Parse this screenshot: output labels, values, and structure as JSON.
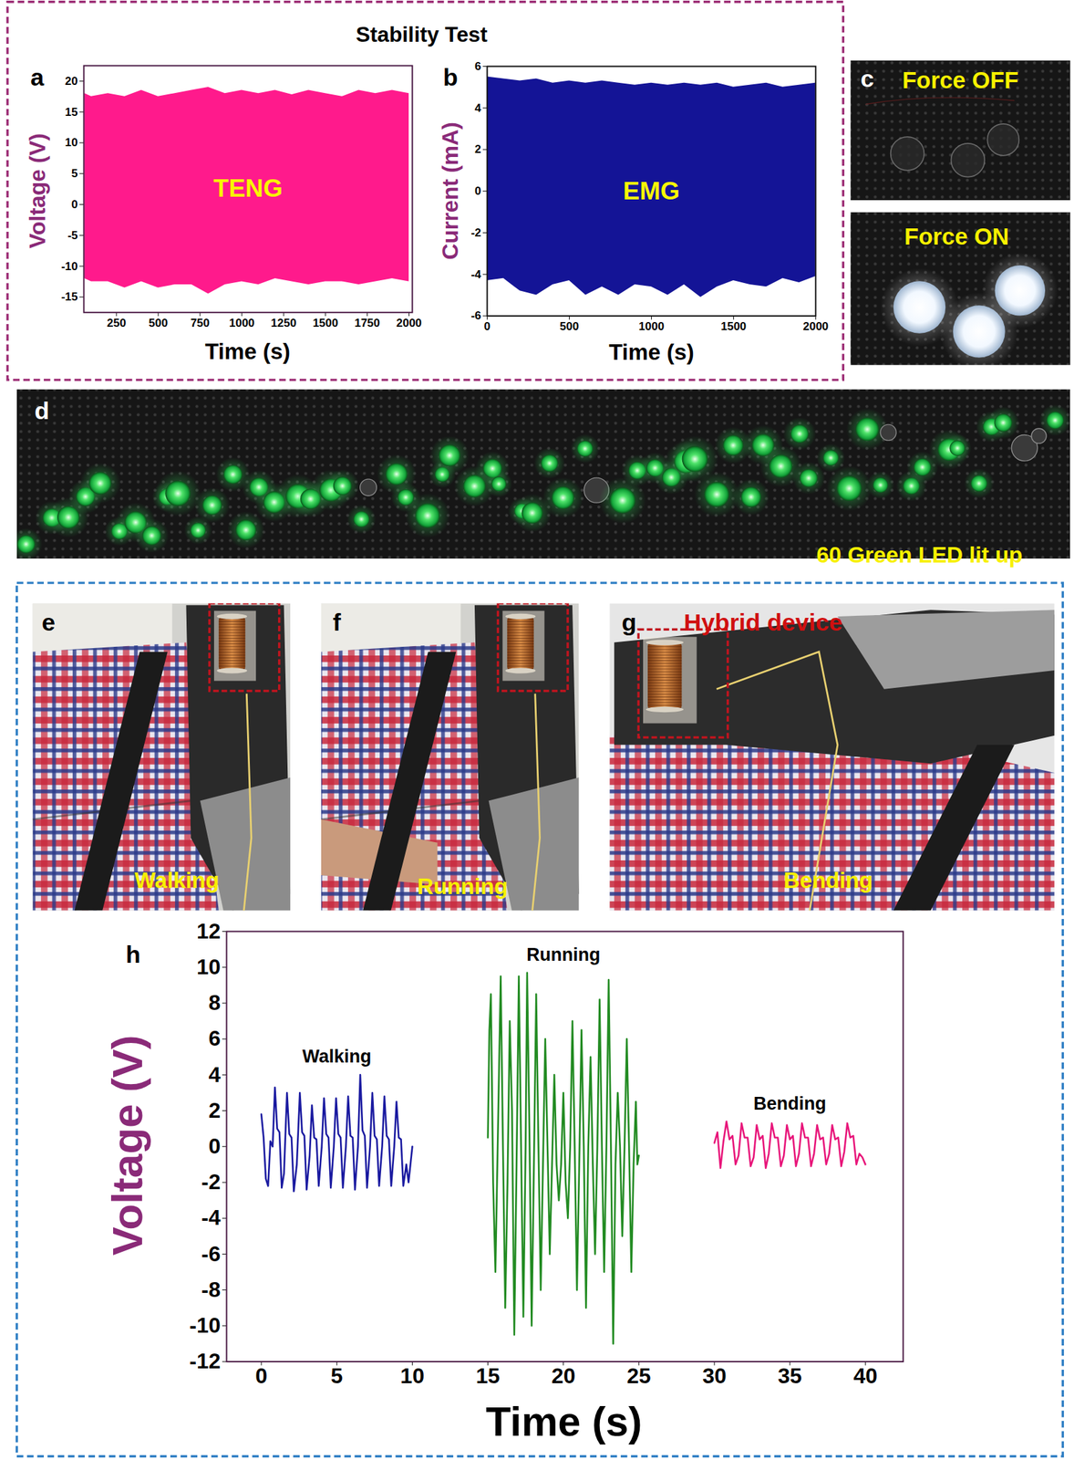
{
  "title": "Stability Test",
  "chart_data": [
    {
      "panel_label": "a",
      "type": "area",
      "x_label": "Time (s)",
      "y_label": "Voltage (V)",
      "annotation": "TENG",
      "color": "#ff1a8c",
      "x": [
        60,
        100,
        200,
        300,
        400,
        500,
        600,
        700,
        800,
        900,
        1000,
        1100,
        1200,
        1300,
        1400,
        1500,
        1600,
        1700,
        1800,
        1900,
        2000
      ],
      "y_max": [
        18,
        17.5,
        18,
        17.5,
        18.5,
        17.5,
        18,
        18.5,
        19,
        18,
        18.5,
        18,
        18.5,
        17.8,
        18.5,
        18,
        17.5,
        18.5,
        18,
        18.5,
        18
      ],
      "y_min": [
        -12,
        -12.5,
        -12.5,
        -13.5,
        -12.5,
        -13.5,
        -13,
        -13,
        -14.5,
        -13,
        -12.5,
        -13,
        -12,
        -12.5,
        -13,
        -12.5,
        -12.5,
        -13,
        -12.5,
        -12,
        -12.5
      ],
      "xlim": [
        55,
        2020
      ],
      "ylim": [
        -17.5,
        22.5
      ],
      "xticks": [
        250,
        500,
        750,
        1000,
        1250,
        1500,
        1750,
        2000
      ],
      "yticks": [
        -15,
        -10,
        -5,
        0,
        5,
        10,
        15,
        20
      ]
    },
    {
      "panel_label": "b",
      "type": "area",
      "x_label": "Time (s)",
      "y_label": "Current (mA)",
      "annotation": "EMG",
      "color": "#141496",
      "x": [
        0,
        100,
        200,
        300,
        400,
        500,
        600,
        700,
        800,
        900,
        1000,
        1100,
        1200,
        1300,
        1400,
        1500,
        1600,
        1700,
        1800,
        1900,
        2000
      ],
      "y_max": [
        5.5,
        5.4,
        5.3,
        5.4,
        5.2,
        5.3,
        5.2,
        5.3,
        5.2,
        5.1,
        5.2,
        5.1,
        5.2,
        5.1,
        5.2,
        5.0,
        5.1,
        5.2,
        5.0,
        5.1,
        5.2
      ],
      "y_min": [
        -4.3,
        -4.2,
        -4.8,
        -5.0,
        -4.5,
        -4.3,
        -5.0,
        -4.6,
        -5.0,
        -4.5,
        -4.6,
        -5.0,
        -4.5,
        -5.1,
        -4.6,
        -4.3,
        -4.5,
        -4.6,
        -4.2,
        -4.4,
        -4.1
      ],
      "xlim": [
        0,
        2000
      ],
      "ylim": [
        -6,
        6
      ],
      "xticks": [
        0,
        500,
        1000,
        1500,
        2000
      ],
      "yticks": [
        -6,
        -4,
        -2,
        0,
        2,
        4,
        6
      ]
    },
    {
      "panel_label": "h",
      "type": "line",
      "x_label": "Time (s)",
      "y_label": "Voltage (V)",
      "xlim": [
        -2.3,
        42.5
      ],
      "ylim": [
        -12,
        12
      ],
      "xticks": [
        0,
        5,
        10,
        15,
        20,
        25,
        30,
        35,
        40
      ],
      "yticks": [
        -12,
        -10,
        -8,
        -6,
        -4,
        -2,
        0,
        2,
        4,
        6,
        8,
        10,
        12
      ],
      "series": [
        {
          "name": "Walking",
          "color": "#1a1aa0",
          "x": [
            0,
            0.15,
            0.3,
            0.45,
            0.6,
            0.75,
            0.9,
            1.05,
            1.2,
            1.35,
            1.5,
            1.7,
            1.85,
            2.0,
            2.15,
            2.35,
            2.55,
            2.7,
            2.85,
            3.0,
            3.2,
            3.35,
            3.5,
            3.65,
            3.8,
            4.0,
            4.15,
            4.3,
            4.45,
            4.6,
            4.8,
            4.95,
            5.1,
            5.25,
            5.4,
            5.6,
            5.75,
            5.9,
            6.05,
            6.2,
            6.4,
            6.55,
            6.7,
            6.85,
            7.0,
            7.2,
            7.35,
            7.5,
            7.65,
            7.8,
            8.0,
            8.15,
            8.3,
            8.45,
            8.6,
            8.8,
            8.95,
            9.1,
            9.25,
            9.4,
            9.6,
            9.75,
            10.0
          ],
          "values": [
            1.8,
            0.5,
            -1.8,
            -2.2,
            0.3,
            0.0,
            3.3,
            1.0,
            0.8,
            -2.3,
            -1.5,
            3.0,
            0.7,
            0.5,
            -2.5,
            -1.0,
            3.0,
            0.8,
            0.6,
            -2.4,
            -0.5,
            2.3,
            0.5,
            0.4,
            -2.2,
            0,
            2.7,
            0.7,
            0.5,
            -2.3,
            0,
            2.7,
            0.7,
            0.5,
            -2.3,
            0,
            2.8,
            0.6,
            0.5,
            -2.4,
            0,
            4.0,
            0.9,
            0.6,
            -2.3,
            0,
            3.0,
            0.6,
            0.4,
            -2.2,
            0,
            2.8,
            0.6,
            0.4,
            -2.2,
            0,
            2.5,
            0.5,
            0.4,
            -2.2,
            -1.0,
            -2.0,
            0.0
          ]
        },
        {
          "name": "Running",
          "color": "#228b22",
          "x": [
            15.0,
            15.1,
            15.2,
            15.35,
            15.5,
            15.65,
            15.85,
            16.0,
            16.15,
            16.3,
            16.45,
            16.6,
            16.75,
            16.9,
            17.05,
            17.2,
            17.35,
            17.5,
            17.6,
            17.75,
            17.9,
            18.05,
            18.2,
            18.35,
            18.5,
            18.65,
            18.8,
            18.95,
            19.1,
            19.25,
            19.4,
            19.55,
            19.7,
            19.85,
            20.0,
            20.15,
            20.3,
            20.45,
            20.6,
            20.75,
            20.9,
            21.05,
            21.2,
            21.35,
            21.5,
            21.65,
            21.8,
            21.95,
            22.1,
            22.25,
            22.4,
            22.55,
            22.7,
            22.85,
            23.0,
            23.15,
            23.3,
            23.45,
            23.6,
            23.75,
            23.9,
            24.05,
            24.2,
            24.35,
            24.5,
            24.65,
            24.8,
            24.9,
            25.0
          ],
          "values": [
            0.5,
            6.5,
            8.5,
            -2,
            -7,
            0,
            9.5,
            0,
            -9,
            -2,
            7,
            2,
            -10.5,
            -1,
            9.5,
            0,
            -9.5,
            0,
            9.7,
            1,
            -10,
            -1,
            8.5,
            0,
            -8,
            -1,
            6,
            0,
            -6,
            -1,
            4,
            -1,
            -3,
            -1,
            3,
            -2,
            -4,
            0,
            7,
            0,
            -8,
            -1,
            6.5,
            0,
            -9,
            0,
            5,
            -1,
            -6,
            0,
            8.2,
            0,
            -7,
            0,
            9.3,
            0,
            -11,
            -1,
            3,
            0,
            -5,
            0,
            6,
            0,
            -7,
            -1,
            2.5,
            -1,
            -0.5
          ]
        },
        {
          "name": "Bending",
          "color": "#e8157a",
          "x": [
            30,
            30.2,
            30.4,
            30.6,
            30.8,
            31,
            31.2,
            31.4,
            31.6,
            31.8,
            32,
            32.2,
            32.4,
            32.6,
            32.8,
            33,
            33.2,
            33.4,
            33.6,
            33.8,
            34,
            34.2,
            34.4,
            34.6,
            34.8,
            35,
            35.2,
            35.4,
            35.6,
            35.8,
            36,
            36.2,
            36.4,
            36.6,
            36.8,
            37,
            37.2,
            37.4,
            37.6,
            37.8,
            38,
            38.2,
            38.4,
            38.6,
            38.8,
            39,
            39.2,
            39.4,
            39.6,
            39.8,
            40
          ],
          "values": [
            0.2,
            0.8,
            -1.2,
            0.3,
            1.4,
            0.4,
            0.6,
            -1.0,
            -0.5,
            1.3,
            0.5,
            0.5,
            -1.1,
            -0.6,
            1.2,
            0.4,
            0.6,
            -1.2,
            -0.4,
            1.3,
            0.5,
            0.5,
            -1.1,
            -0.5,
            1.2,
            0.4,
            0.6,
            -1.1,
            -0.4,
            1.3,
            0.5,
            0.5,
            -1.1,
            -0.4,
            1.2,
            0.4,
            0.5,
            -1.0,
            -0.4,
            1.2,
            0.4,
            0.5,
            -1.1,
            -0.3,
            1.3,
            0.5,
            0.6,
            -1.0,
            -0.4,
            -0.6,
            -1.0
          ]
        }
      ]
    }
  ],
  "photos": [
    {
      "label": "c",
      "texts": [
        "Force OFF",
        "Force ON"
      ]
    },
    {
      "label": "d",
      "caption": "60 Green LED lit up"
    },
    {
      "label": "e",
      "caption": "Walking"
    },
    {
      "label": "f",
      "caption": "Running"
    },
    {
      "label": "g",
      "caption": "Bending",
      "device": "Hybrid device"
    }
  ]
}
